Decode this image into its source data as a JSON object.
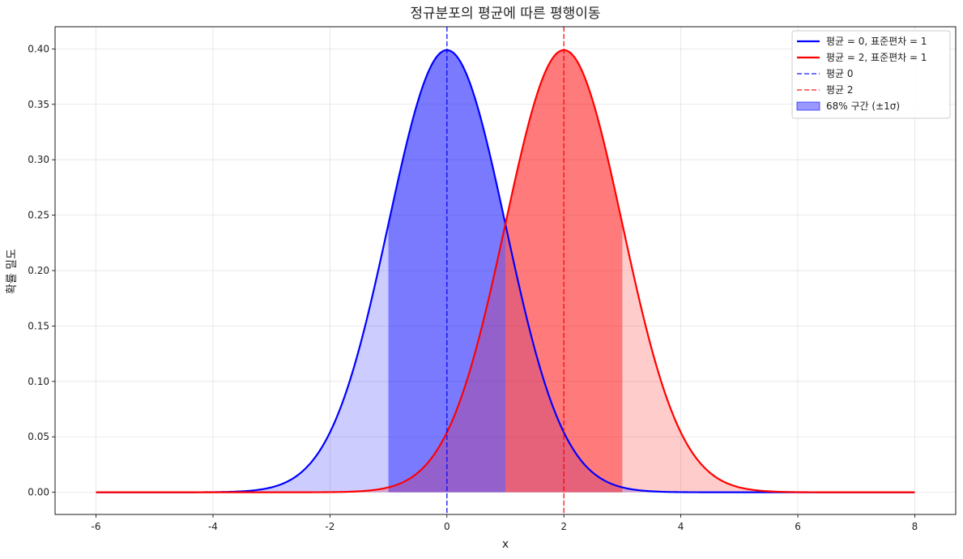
{
  "chart_data": {
    "type": "line",
    "title": "정규분포의 평균에 따른 평행이동",
    "xlabel": "x",
    "ylabel": "확률 밀도",
    "xlim": [
      -6.7,
      8.7
    ],
    "ylim": [
      -0.02,
      0.42
    ],
    "xticks": [
      -6,
      -4,
      -2,
      0,
      2,
      4,
      6,
      8
    ],
    "yticks": [
      0.0,
      0.05,
      0.1,
      0.15,
      0.2,
      0.25,
      0.3,
      0.35,
      0.4
    ],
    "x_range": [
      -6,
      8
    ],
    "grid": true,
    "legend_position": "top-right",
    "series": [
      {
        "name": "평균 = 0, 표준편차 = 1",
        "distribution": "normal",
        "mean": 0,
        "std": 1,
        "color": "#0000ff",
        "style": "solid"
      },
      {
        "name": "평균 = 2, 표준편차 = 1",
        "distribution": "normal",
        "mean": 2,
        "std": 1,
        "color": "#ff0000",
        "style": "solid"
      }
    ],
    "vlines": [
      {
        "name": "평균 0",
        "x": 0,
        "color": "#0000ff",
        "style": "dashed"
      },
      {
        "name": "평균 2",
        "x": 2,
        "color": "#ff0000",
        "style": "dashed"
      }
    ],
    "shaded": [
      {
        "series": 0,
        "region": "full",
        "color": "#0000ff",
        "opacity": 0.2
      },
      {
        "series": 0,
        "region": [
          -1,
          1
        ],
        "color": "#0000ff",
        "opacity": 0.4,
        "name": "68% 구간 (±1σ)"
      },
      {
        "series": 1,
        "region": "full",
        "color": "#ff0000",
        "opacity": 0.2
      },
      {
        "series": 1,
        "region": [
          1,
          3
        ],
        "color": "#ff0000",
        "opacity": 0.4
      }
    ],
    "legend": [
      {
        "label": "평균 = 0, 표준편차 = 1",
        "kind": "line",
        "color": "#0000ff"
      },
      {
        "label": "평균 = 2, 표준편차 = 1",
        "kind": "line",
        "color": "#ff0000"
      },
      {
        "label": "평균 0",
        "kind": "dashed",
        "color": "#0000ff"
      },
      {
        "label": "평균 2",
        "kind": "dashed",
        "color": "#ff0000"
      },
      {
        "label": "68% 구간 (±1σ)",
        "kind": "patch",
        "color": "#0000ff"
      }
    ]
  }
}
